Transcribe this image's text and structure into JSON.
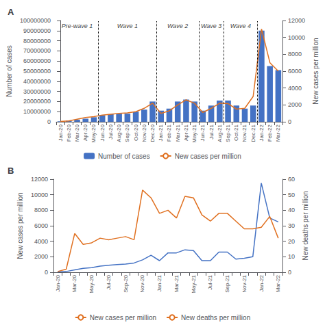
{
  "chart_data": [
    {
      "type": "bar",
      "title": "A",
      "categories": [
        "Jan-20",
        "Feb-20",
        "Mar-20",
        "Apr-20",
        "May-20",
        "Jun-20",
        "Jul-20",
        "Aug-20",
        "Sep-20",
        "Oct-20",
        "Nov-20",
        "Dec-20",
        "Jan-21",
        "Feb-21",
        "Mar-21",
        "Apr-21",
        "May-21",
        "Jun-21",
        "Jul-21",
        "Aug-21",
        "Sep-21",
        "Oct-21",
        "Nov-21",
        "Dec-21",
        "Jan-22",
        "Feb-22",
        "Mar-22"
      ],
      "series": [
        {
          "name": "Number of cases",
          "type": "bar",
          "color": "#4472C4",
          "values": [
            500000,
            1000000,
            2000000,
            3000000,
            4500000,
            6500000,
            7500000,
            8000000,
            8000000,
            10000000,
            12000000,
            20000000,
            11000000,
            13000000,
            20000000,
            22000000,
            20000000,
            11000000,
            16000000,
            21000000,
            21000000,
            16000000,
            13000000,
            16000000,
            90000000,
            55000000,
            51000000
          ]
        },
        {
          "name": "New cases per million",
          "type": "line",
          "color": "#E07020",
          "axis": "y2",
          "values": [
            50,
            100,
            300,
            500,
            600,
            800,
            900,
            1000,
            1050,
            1200,
            1600,
            2200,
            1000,
            1300,
            2000,
            2600,
            2200,
            1100,
            1600,
            2200,
            2150,
            1500,
            1600,
            3000,
            11000,
            7000,
            6000
          ]
        }
      ],
      "ylabel": "Number of cases",
      "y2label": "New cases per million",
      "ylim": [
        0,
        100000000
      ],
      "yticks": [
        0,
        10000000,
        20000000,
        30000000,
        40000000,
        50000000,
        60000000,
        70000000,
        80000000,
        90000000,
        100000000
      ],
      "y2lim": [
        0,
        12000
      ],
      "y2ticks": [
        0,
        2000,
        4000,
        6000,
        8000,
        10000,
        12000
      ],
      "wave_dividers": [
        "Jun-20",
        "Jan-21",
        "Jun-21",
        "Sep-21",
        "Jan-22"
      ],
      "annotations": [
        "Pre-wave 1",
        "Wave 1",
        "Wave 2",
        "Wave 3",
        "Wave 4"
      ],
      "grid": false,
      "legend": "bottom"
    },
    {
      "type": "line",
      "title": "B",
      "categories": [
        "Jan-20",
        null,
        "Mar-20",
        null,
        "May-20",
        null,
        "Jul-20",
        null,
        "Sep-20",
        null,
        "Nov-20",
        null,
        "Jan-21",
        null,
        "Mar-21",
        null,
        "May-21",
        null,
        "Jul-21",
        null,
        "Sep-21",
        null,
        "Nov-21",
        null,
        "Jan-22",
        null,
        "Mar-22"
      ],
      "series": [
        {
          "name": "New cases per million",
          "type": "line",
          "color": "#4472C4",
          "values": [
            50,
            100,
            300,
            500,
            600,
            800,
            900,
            1000,
            1050,
            1200,
            1600,
            2200,
            1500,
            2500,
            2500,
            2900,
            2800,
            1500,
            1500,
            2600,
            2600,
            1700,
            1800,
            2000,
            11500,
            7000,
            6500
          ]
        },
        {
          "name": "New deaths per million",
          "type": "line",
          "color": "#E07020",
          "axis": "y2",
          "values": [
            0.5,
            2,
            25,
            18,
            19,
            22,
            21,
            22,
            23,
            21,
            53,
            48,
            38,
            40,
            35,
            49,
            48,
            37,
            33,
            38,
            38,
            33,
            28,
            28,
            29,
            36,
            22
          ]
        }
      ],
      "ylabel": "New cases per million",
      "y2label": "New deaths per million",
      "ylim": [
        0,
        12000
      ],
      "yticks": [
        0,
        2000,
        4000,
        6000,
        8000,
        10000,
        12000
      ],
      "y2lim": [
        0,
        60
      ],
      "y2ticks": [
        0,
        10,
        20,
        30,
        40,
        50,
        60
      ],
      "grid": false,
      "legend": "bottom"
    }
  ]
}
